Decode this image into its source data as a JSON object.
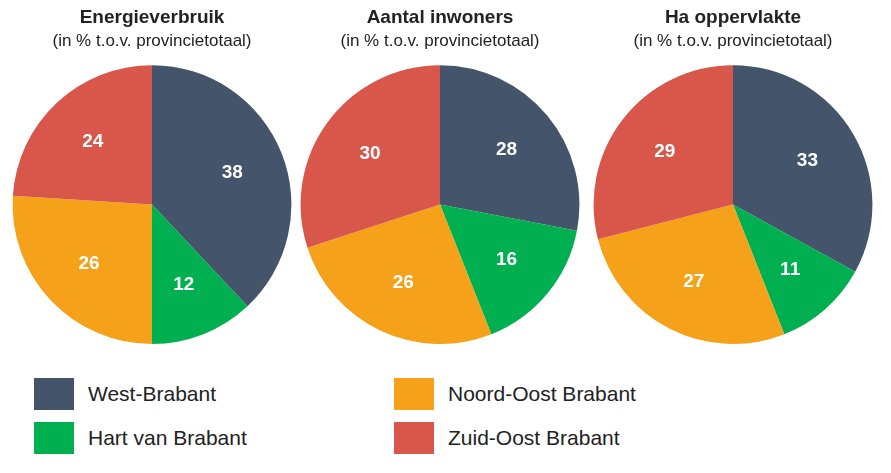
{
  "chart_data": [
    {
      "type": "pie",
      "title": "Energieverbruik",
      "subtitle": "(in % t.o.v. provincietotaal)",
      "categories": [
        "West-Brabant",
        "Hart van Brabant",
        "Noord-Oost Brabant",
        "Zuid-Oost Brabant"
      ],
      "values": [
        38,
        12,
        26,
        24
      ],
      "colors": [
        "#44546a",
        "#00b050",
        "#f5a21a",
        "#d8574a"
      ],
      "data_labels": true,
      "legend": "bottom"
    },
    {
      "type": "pie",
      "title": "Aantal inwoners",
      "subtitle": "(in % t.o.v. provincietotaal)",
      "categories": [
        "West-Brabant",
        "Hart van Brabant",
        "Noord-Oost Brabant",
        "Zuid-Oost Brabant"
      ],
      "values": [
        28,
        16,
        26,
        30
      ],
      "colors": [
        "#44546a",
        "#00b050",
        "#f5a21a",
        "#d8574a"
      ],
      "data_labels": true,
      "legend": "bottom"
    },
    {
      "type": "pie",
      "title": "Ha oppervlakte",
      "subtitle": "(in % t.o.v. provincietotaal)",
      "categories": [
        "West-Brabant",
        "Hart van Brabant",
        "Noord-Oost Brabant",
        "Zuid-Oost Brabant"
      ],
      "values": [
        33,
        11,
        27,
        29
      ],
      "colors": [
        "#44546a",
        "#00b050",
        "#f5a21a",
        "#d8574a"
      ],
      "data_labels": true,
      "legend": "bottom"
    }
  ]
}
